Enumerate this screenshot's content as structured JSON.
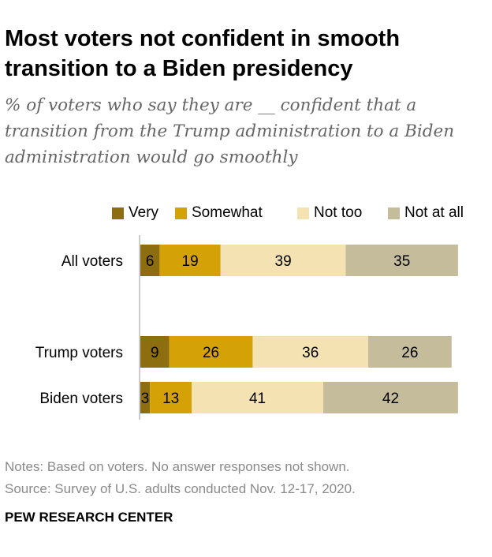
{
  "title": "Most voters not confident in smooth transition to a Biden presidency",
  "subtitle": "% of voters who say they are __ confident that a transition from the Trump administration to a Biden administration would go smoothly",
  "notes": "Notes: Based on voters. No answer responses not shown.",
  "source": "Source: Survey of U.S. adults conducted Nov. 12-17, 2020.",
  "org": "PEW RESEARCH CENTER",
  "colors": {
    "very": "#8c6d0f",
    "somewhat": "#d4a207",
    "not_too": "#f4e2b2",
    "not_at_all": "#c5bc9b",
    "axis": "#999999"
  },
  "chart_data": {
    "type": "bar",
    "orientation": "horizontal",
    "stacked": true,
    "categories": [
      "All voters",
      "Trump voters",
      "Biden voters"
    ],
    "series": [
      {
        "name": "Very",
        "color": "#8c6d0f",
        "values": [
          6,
          9,
          3
        ]
      },
      {
        "name": "Somewhat",
        "color": "#d4a207",
        "values": [
          19,
          26,
          13
        ]
      },
      {
        "name": "Not too",
        "color": "#f4e2b2",
        "values": [
          39,
          36,
          41
        ]
      },
      {
        "name": "Not at all",
        "color": "#c5bc9b",
        "values": [
          35,
          26,
          42
        ]
      }
    ],
    "xlim": [
      0,
      100
    ],
    "legend_position": "top",
    "grid": false
  }
}
